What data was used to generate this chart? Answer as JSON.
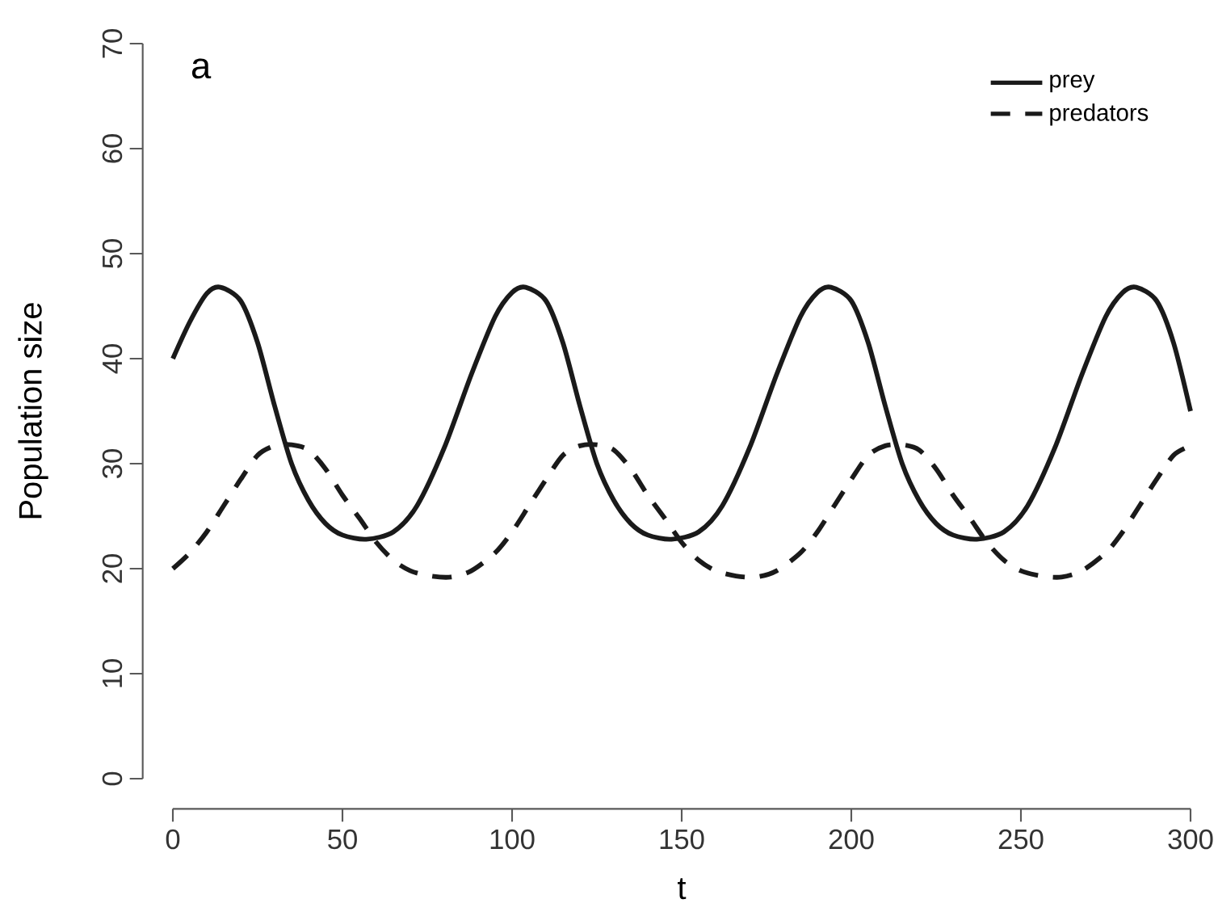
{
  "chart_data": {
    "type": "line",
    "xlabel": "t",
    "ylabel": "Population size",
    "annotations": [
      "a"
    ],
    "xlim": [
      0,
      300
    ],
    "xticks": [
      0,
      50,
      100,
      150,
      200,
      250,
      300
    ],
    "ylim": [
      0,
      70
    ],
    "yticks": [
      0,
      10,
      20,
      30,
      40,
      50,
      60,
      70
    ],
    "legend": "top right",
    "series": [
      {
        "name": "prey",
        "color": "#1a1a1a",
        "line_style": "solid",
        "x": [
          0,
          5,
          10,
          14,
          20,
          25,
          30,
          35,
          40,
          45,
          50,
          57,
          65,
          72,
          80,
          88,
          95,
          100,
          104,
          110,
          115,
          120,
          125,
          130,
          135,
          140,
          147,
          155,
          162,
          170,
          178,
          185,
          190,
          194,
          200,
          205,
          210,
          215,
          220,
          225,
          230,
          237,
          245,
          252,
          260,
          268,
          275,
          280,
          284,
          290,
          295,
          300
        ],
        "values": [
          40,
          43.5,
          46.2,
          46.8,
          45.5,
          41.5,
          35.5,
          30,
          26.5,
          24.3,
          23.2,
          22.8,
          23.5,
          26,
          31.5,
          38.5,
          44,
          46.3,
          46.8,
          45.5,
          41.5,
          35.5,
          30,
          26.5,
          24.3,
          23.2,
          22.8,
          23.5,
          26,
          31.5,
          38.5,
          44,
          46.3,
          46.8,
          45.5,
          41.5,
          35.5,
          30,
          26.5,
          24.3,
          23.2,
          22.8,
          23.5,
          26,
          31.5,
          38.5,
          44,
          46.3,
          46.8,
          45.5,
          41.5,
          35
        ]
      },
      {
        "name": "predators",
        "color": "#1a1a1a",
        "line_style": "dashed",
        "x": [
          0,
          5,
          10,
          15,
          20,
          25,
          30,
          35,
          40,
          45,
          50,
          55,
          60,
          65,
          70,
          76,
          82,
          88,
          95,
          100,
          105,
          110,
          115,
          120,
          125,
          130,
          135,
          140,
          145,
          150,
          155,
          160,
          166,
          172,
          178,
          185,
          190,
          195,
          200,
          205,
          210,
          215,
          220,
          225,
          230,
          235,
          240,
          245,
          250,
          256,
          262,
          268,
          275,
          280,
          285,
          290,
          295,
          300
        ],
        "values": [
          20,
          21.5,
          23.5,
          26,
          28.5,
          30.8,
          31.7,
          31.8,
          31.3,
          29.5,
          27,
          24.8,
          22.5,
          20.8,
          19.8,
          19.3,
          19.2,
          19.8,
          21.5,
          23.5,
          26,
          28.5,
          30.8,
          31.7,
          31.8,
          31.3,
          29.5,
          27,
          24.8,
          22.5,
          20.8,
          19.8,
          19.3,
          19.2,
          19.8,
          21.5,
          23.5,
          26,
          28.5,
          30.8,
          31.7,
          31.8,
          31.3,
          29.5,
          27,
          24.8,
          22.5,
          20.8,
          19.8,
          19.3,
          19.2,
          19.8,
          21.5,
          23.5,
          26,
          28.5,
          30.8,
          31.7
        ]
      }
    ]
  }
}
